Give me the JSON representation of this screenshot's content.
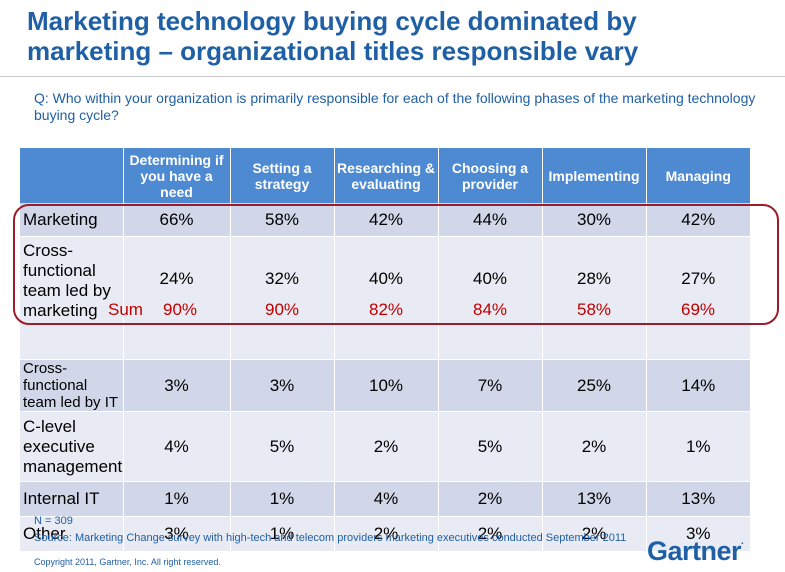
{
  "slide": {
    "title": "Marketing technology buying cycle dominated by marketing – organizational titles responsible vary",
    "question": "Q:  Who within your organization is primarily responsible for each of the following phases of the marketing technology buying cycle?"
  },
  "table": {
    "headers": [
      "",
      "Determining if you have a need",
      "Setting a strategy",
      "Researching & evaluating",
      "Choosing a provider",
      "Implementing",
      "Managing"
    ],
    "rows": [
      {
        "label": "Marketing",
        "values": [
          "66%",
          "58%",
          "42%",
          "44%",
          "30%",
          "42%"
        ]
      },
      {
        "label": "Cross-functional team led by marketing",
        "values": [
          "24%",
          "32%",
          "40%",
          "40%",
          "28%",
          "27%"
        ]
      },
      {
        "label": "Cross-functional team led by IT",
        "values": [
          "3%",
          "3%",
          "10%",
          "7%",
          "25%",
          "14%"
        ]
      },
      {
        "label": "C-level executive management",
        "values": [
          "4%",
          "5%",
          "2%",
          "5%",
          "2%",
          "1%"
        ]
      },
      {
        "label": "Internal IT",
        "values": [
          "1%",
          "1%",
          "4%",
          "2%",
          "13%",
          "13%"
        ]
      },
      {
        "label": "Other",
        "values": [
          "3%",
          "1%",
          "2%",
          "2%",
          "2%",
          "3%"
        ]
      }
    ],
    "sum_label": "Sum",
    "sums": [
      "90%",
      "90%",
      "82%",
      "84%",
      "58%",
      "69%"
    ]
  },
  "footer": {
    "n": "N = 309",
    "source": "Source:  Marketing Change survey with high-tech and telecom providers marketing executives conducted September 2011",
    "copyright": "Copyright 2011, Gartner, Inc.  All right reserved.",
    "logo_text": "Gartner",
    "logo_mark": "."
  },
  "colors": {
    "title_blue": "#1f5fa6",
    "header_blue": "#4d8ad2",
    "row_odd": "#d1d7e8",
    "row_even": "#e8ebf3",
    "highlight_red": "#9b1c2c",
    "sum_red": "#c00000"
  }
}
